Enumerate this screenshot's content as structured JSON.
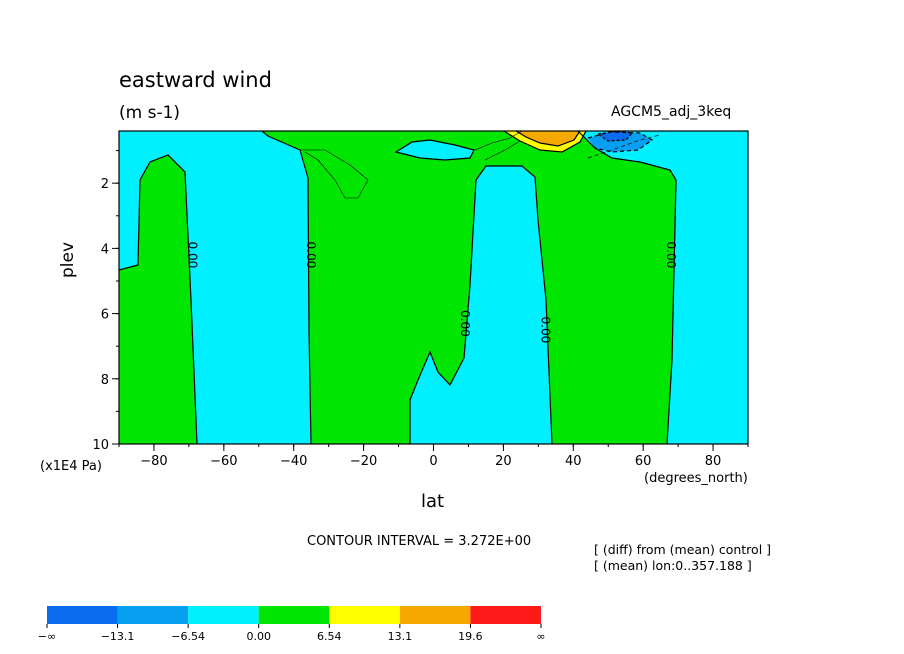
{
  "chart_data": {
    "type": "contour",
    "title": "eastward wind",
    "units": "(m s-1)",
    "dataset": "AGCM5_adj_3keq",
    "xlabel": "lat",
    "xunits": "(degrees_north)",
    "ylabel": "plev",
    "yunits": "(x1E4 Pa)",
    "xlim": [
      -90,
      90
    ],
    "ylim": [
      0.4,
      10
    ],
    "y_inverted": true,
    "xticks": [
      -80,
      -60,
      -40,
      -20,
      0,
      20,
      40,
      60,
      80
    ],
    "yticks": [
      2,
      4,
      6,
      8,
      10
    ],
    "contour_interval_text": "CONTOUR INTERVAL = 3.272E+00",
    "notes": [
      "[ (diff) from (mean) control ]",
      "[ (mean) lon:0..357.188 ]"
    ],
    "contour_labels": [
      {
        "text": "0.00",
        "lat": -69,
        "plev": 4.2
      },
      {
        "text": "0.00",
        "lat": -35,
        "plev": 4.2
      },
      {
        "text": "0.00",
        "lat": 9,
        "plev": 6.3
      },
      {
        "text": "0.00",
        "lat": 32,
        "plev": 6.5
      },
      {
        "text": "0.00",
        "lat": 68,
        "plev": 4.2
      }
    ],
    "colorbar": {
      "labels": [
        "-∞",
        "-13.1",
        "-6.54",
        "0.00",
        "6.54",
        "13.1",
        "19.6",
        "∞"
      ],
      "colors": [
        "#0a6cf0",
        "#07a0f0",
        "#00f0ff",
        "#00e600",
        "#ffff00",
        "#f5a800",
        "#ff1a1a"
      ]
    },
    "fill_colors": {
      "negative_weak": "#00f0ff",
      "positive_weak": "#00e600",
      "positive_mid": "#ffff00",
      "positive_strong": "#f5a800",
      "negative_mid": "#07a0f0",
      "negative_strong": "#0a6cf0"
    }
  }
}
